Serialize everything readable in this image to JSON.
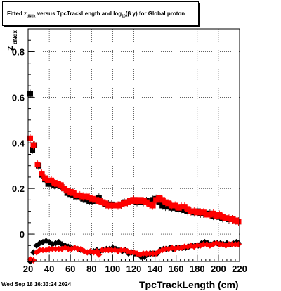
{
  "title": {
    "prefix": "Fitted  z",
    "sub1": "dNdx",
    "middle": "  versus TpcTrackLength and log",
    "sub2": "10",
    "suffix": "(β  γ) for Global proton"
  },
  "footer": {
    "date": "Wed Sep 18 16:33:24 2024"
  },
  "chart_data": {
    "type": "scatter",
    "title": "Fitted z_dNdx versus TpcTrackLength and log10(β γ) for Global proton",
    "xlabel": "TpcTrackLength (cm)",
    "ylabel": "z_dNdx",
    "xlim": [
      20,
      220
    ],
    "ylim": [
      -0.12,
      0.9
    ],
    "xticks": [
      20,
      40,
      60,
      80,
      100,
      120,
      140,
      160,
      180,
      200,
      220
    ],
    "yticks": [
      0,
      0.2,
      0.4,
      0.6,
      0.8
    ],
    "ytick_labels": [
      "0",
      "0.2",
      "0.4",
      "0.6",
      "0.8"
    ],
    "grid": true,
    "series": [
      {
        "color": "#000000",
        "group": "upper",
        "points": [
          [
            22,
            0.615
          ],
          [
            24,
            0.37
          ],
          [
            26,
            0.39
          ],
          [
            30,
            0.3
          ],
          [
            33,
            0.26
          ],
          [
            36,
            0.24
          ],
          [
            39,
            0.22
          ],
          [
            42,
            0.22
          ],
          [
            45,
            0.215
          ],
          [
            48,
            0.215
          ],
          [
            51,
            0.21
          ],
          [
            54,
            0.2
          ],
          [
            57,
            0.18
          ],
          [
            60,
            0.175
          ],
          [
            63,
            0.17
          ],
          [
            66,
            0.165
          ],
          [
            69,
            0.165
          ],
          [
            72,
            0.155
          ],
          [
            75,
            0.15
          ],
          [
            78,
            0.145
          ],
          [
            81,
            0.145
          ],
          [
            84,
            0.15
          ],
          [
            87,
            0.16
          ],
          [
            90,
            0.14
          ],
          [
            93,
            0.13
          ],
          [
            96,
            0.13
          ],
          [
            99,
            0.13
          ],
          [
            102,
            0.125
          ],
          [
            105,
            0.125
          ],
          [
            108,
            0.13
          ],
          [
            111,
            0.14
          ],
          [
            114,
            0.14
          ],
          [
            117,
            0.145
          ],
          [
            120,
            0.15
          ],
          [
            123,
            0.14
          ],
          [
            126,
            0.14
          ],
          [
            129,
            0.14
          ],
          [
            132,
            0.145
          ],
          [
            135,
            0.14
          ],
          [
            138,
            0.15
          ],
          [
            141,
            0.155
          ],
          [
            144,
            0.14
          ],
          [
            147,
            0.125
          ],
          [
            150,
            0.12
          ],
          [
            153,
            0.12
          ],
          [
            156,
            0.115
          ],
          [
            159,
            0.115
          ],
          [
            162,
            0.11
          ],
          [
            165,
            0.11
          ],
          [
            168,
            0.105
          ],
          [
            171,
            0.1
          ],
          [
            174,
            0.1
          ],
          [
            177,
            0.095
          ],
          [
            180,
            0.1
          ],
          [
            183,
            0.09
          ],
          [
            186,
            0.09
          ],
          [
            189,
            0.09
          ],
          [
            192,
            0.09
          ],
          [
            195,
            0.08
          ],
          [
            198,
            0.08
          ],
          [
            201,
            0.075
          ],
          [
            204,
            0.07
          ],
          [
            207,
            0.07
          ],
          [
            210,
            0.065
          ],
          [
            213,
            0.065
          ],
          [
            216,
            0.06
          ],
          [
            219,
            0.055
          ]
        ]
      },
      {
        "color": "#ff0000",
        "group": "upper",
        "points": [
          [
            22,
            0.42
          ],
          [
            25,
            0.39
          ],
          [
            29,
            0.305
          ],
          [
            33,
            0.265
          ],
          [
            36,
            0.245
          ],
          [
            39,
            0.235
          ],
          [
            42,
            0.235
          ],
          [
            45,
            0.225
          ],
          [
            48,
            0.22
          ],
          [
            51,
            0.215
          ],
          [
            54,
            0.2
          ],
          [
            57,
            0.19
          ],
          [
            60,
            0.185
          ],
          [
            63,
            0.18
          ],
          [
            66,
            0.17
          ],
          [
            69,
            0.17
          ],
          [
            72,
            0.165
          ],
          [
            75,
            0.165
          ],
          [
            78,
            0.16
          ],
          [
            81,
            0.155
          ],
          [
            84,
            0.15
          ],
          [
            87,
            0.145
          ],
          [
            90,
            0.14
          ],
          [
            93,
            0.135
          ],
          [
            96,
            0.125
          ],
          [
            99,
            0.125
          ],
          [
            102,
            0.125
          ],
          [
            105,
            0.125
          ],
          [
            108,
            0.13
          ],
          [
            111,
            0.135
          ],
          [
            114,
            0.14
          ],
          [
            117,
            0.145
          ],
          [
            120,
            0.15
          ],
          [
            123,
            0.145
          ],
          [
            126,
            0.15
          ],
          [
            129,
            0.145
          ],
          [
            132,
            0.14
          ],
          [
            135,
            0.13
          ],
          [
            138,
            0.125
          ],
          [
            141,
            0.15
          ],
          [
            144,
            0.16
          ],
          [
            147,
            0.15
          ],
          [
            150,
            0.14
          ],
          [
            153,
            0.135
          ],
          [
            156,
            0.125
          ],
          [
            159,
            0.125
          ],
          [
            162,
            0.115
          ],
          [
            165,
            0.12
          ],
          [
            168,
            0.12
          ],
          [
            171,
            0.11
          ],
          [
            174,
            0.1
          ],
          [
            177,
            0.1
          ],
          [
            180,
            0.095
          ],
          [
            183,
            0.095
          ],
          [
            186,
            0.095
          ],
          [
            189,
            0.085
          ],
          [
            192,
            0.085
          ],
          [
            195,
            0.09
          ],
          [
            198,
            0.08
          ],
          [
            201,
            0.085
          ],
          [
            204,
            0.075
          ],
          [
            207,
            0.07
          ],
          [
            210,
            0.068
          ],
          [
            213,
            0.065
          ],
          [
            216,
            0.06
          ],
          [
            219,
            0.055
          ]
        ]
      },
      {
        "color": "#000000",
        "group": "lower",
        "points": [
          [
            22,
            -0.12
          ],
          [
            25,
            -0.08
          ],
          [
            28,
            -0.05
          ],
          [
            31,
            -0.04
          ],
          [
            34,
            -0.035
          ],
          [
            37,
            -0.03
          ],
          [
            40,
            -0.035
          ],
          [
            43,
            -0.045
          ],
          [
            46,
            -0.04
          ],
          [
            49,
            -0.035
          ],
          [
            52,
            -0.045
          ],
          [
            55,
            -0.05
          ],
          [
            58,
            -0.055
          ],
          [
            61,
            -0.06
          ],
          [
            64,
            -0.06
          ],
          [
            67,
            -0.065
          ],
          [
            70,
            -0.07
          ],
          [
            73,
            -0.075
          ],
          [
            76,
            -0.08
          ],
          [
            79,
            -0.08
          ],
          [
            82,
            -0.075
          ],
          [
            85,
            -0.07
          ],
          [
            88,
            -0.075
          ],
          [
            91,
            -0.07
          ],
          [
            94,
            -0.065
          ],
          [
            97,
            -0.065
          ],
          [
            100,
            -0.06
          ],
          [
            103,
            -0.065
          ],
          [
            106,
            -0.07
          ],
          [
            109,
            -0.075
          ],
          [
            112,
            -0.07
          ],
          [
            115,
            -0.085
          ],
          [
            118,
            -0.08
          ],
          [
            121,
            -0.085
          ],
          [
            124,
            -0.09
          ],
          [
            127,
            -0.1
          ],
          [
            130,
            -0.1
          ],
          [
            133,
            -0.09
          ],
          [
            136,
            -0.085
          ],
          [
            139,
            -0.085
          ],
          [
            142,
            -0.085
          ],
          [
            145,
            -0.07
          ],
          [
            148,
            -0.065
          ],
          [
            151,
            -0.065
          ],
          [
            154,
            -0.06
          ],
          [
            157,
            -0.065
          ],
          [
            160,
            -0.06
          ],
          [
            163,
            -0.06
          ],
          [
            166,
            -0.06
          ],
          [
            169,
            -0.06
          ],
          [
            172,
            -0.055
          ],
          [
            175,
            -0.05
          ],
          [
            178,
            -0.05
          ],
          [
            181,
            -0.05
          ],
          [
            184,
            -0.04
          ],
          [
            187,
            -0.035
          ],
          [
            190,
            -0.04
          ],
          [
            193,
            -0.045
          ],
          [
            196,
            -0.04
          ],
          [
            199,
            -0.04
          ],
          [
            202,
            -0.04
          ],
          [
            205,
            -0.045
          ],
          [
            208,
            -0.04
          ],
          [
            211,
            -0.045
          ],
          [
            214,
            -0.04
          ],
          [
            217,
            -0.035
          ],
          [
            219,
            -0.04
          ]
        ]
      },
      {
        "color": "#ff0000",
        "group": "lower",
        "points": [
          [
            22,
            -0.11
          ],
          [
            25,
            -0.115
          ],
          [
            28,
            -0.08
          ],
          [
            31,
            -0.07
          ],
          [
            34,
            -0.07
          ],
          [
            37,
            -0.07
          ],
          [
            40,
            -0.065
          ],
          [
            43,
            -0.065
          ],
          [
            46,
            -0.065
          ],
          [
            49,
            -0.065
          ],
          [
            52,
            -0.065
          ],
          [
            55,
            -0.06
          ],
          [
            58,
            -0.065
          ],
          [
            61,
            -0.065
          ],
          [
            64,
            -0.06
          ],
          [
            67,
            -0.065
          ],
          [
            70,
            -0.065
          ],
          [
            73,
            -0.075
          ],
          [
            76,
            -0.08
          ],
          [
            79,
            -0.075
          ],
          [
            82,
            -0.08
          ],
          [
            85,
            -0.075
          ],
          [
            87,
            -0.09
          ],
          [
            90,
            -0.07
          ],
          [
            93,
            -0.07
          ],
          [
            96,
            -0.07
          ],
          [
            99,
            -0.07
          ],
          [
            102,
            -0.07
          ],
          [
            105,
            -0.075
          ],
          [
            108,
            -0.07
          ],
          [
            111,
            -0.07
          ],
          [
            114,
            -0.075
          ],
          [
            117,
            -0.08
          ],
          [
            120,
            -0.08
          ],
          [
            123,
            -0.085
          ],
          [
            126,
            -0.09
          ],
          [
            129,
            -0.085
          ],
          [
            132,
            -0.085
          ],
          [
            135,
            -0.085
          ],
          [
            138,
            -0.085
          ],
          [
            141,
            -0.085
          ],
          [
            144,
            -0.075
          ],
          [
            147,
            -0.07
          ],
          [
            150,
            -0.065
          ],
          [
            153,
            -0.065
          ],
          [
            156,
            -0.06
          ],
          [
            159,
            -0.065
          ],
          [
            162,
            -0.06
          ],
          [
            165,
            -0.06
          ],
          [
            168,
            -0.055
          ],
          [
            171,
            -0.055
          ],
          [
            174,
            -0.05
          ],
          [
            177,
            -0.055
          ],
          [
            180,
            -0.05
          ],
          [
            183,
            -0.05
          ],
          [
            186,
            -0.045
          ],
          [
            189,
            -0.045
          ],
          [
            192,
            -0.05
          ],
          [
            195,
            -0.045
          ],
          [
            198,
            -0.04
          ],
          [
            201,
            -0.045
          ],
          [
            204,
            -0.045
          ],
          [
            207,
            -0.05
          ],
          [
            210,
            -0.045
          ],
          [
            213,
            -0.045
          ],
          [
            216,
            -0.045
          ],
          [
            219,
            -0.045
          ]
        ]
      }
    ]
  }
}
